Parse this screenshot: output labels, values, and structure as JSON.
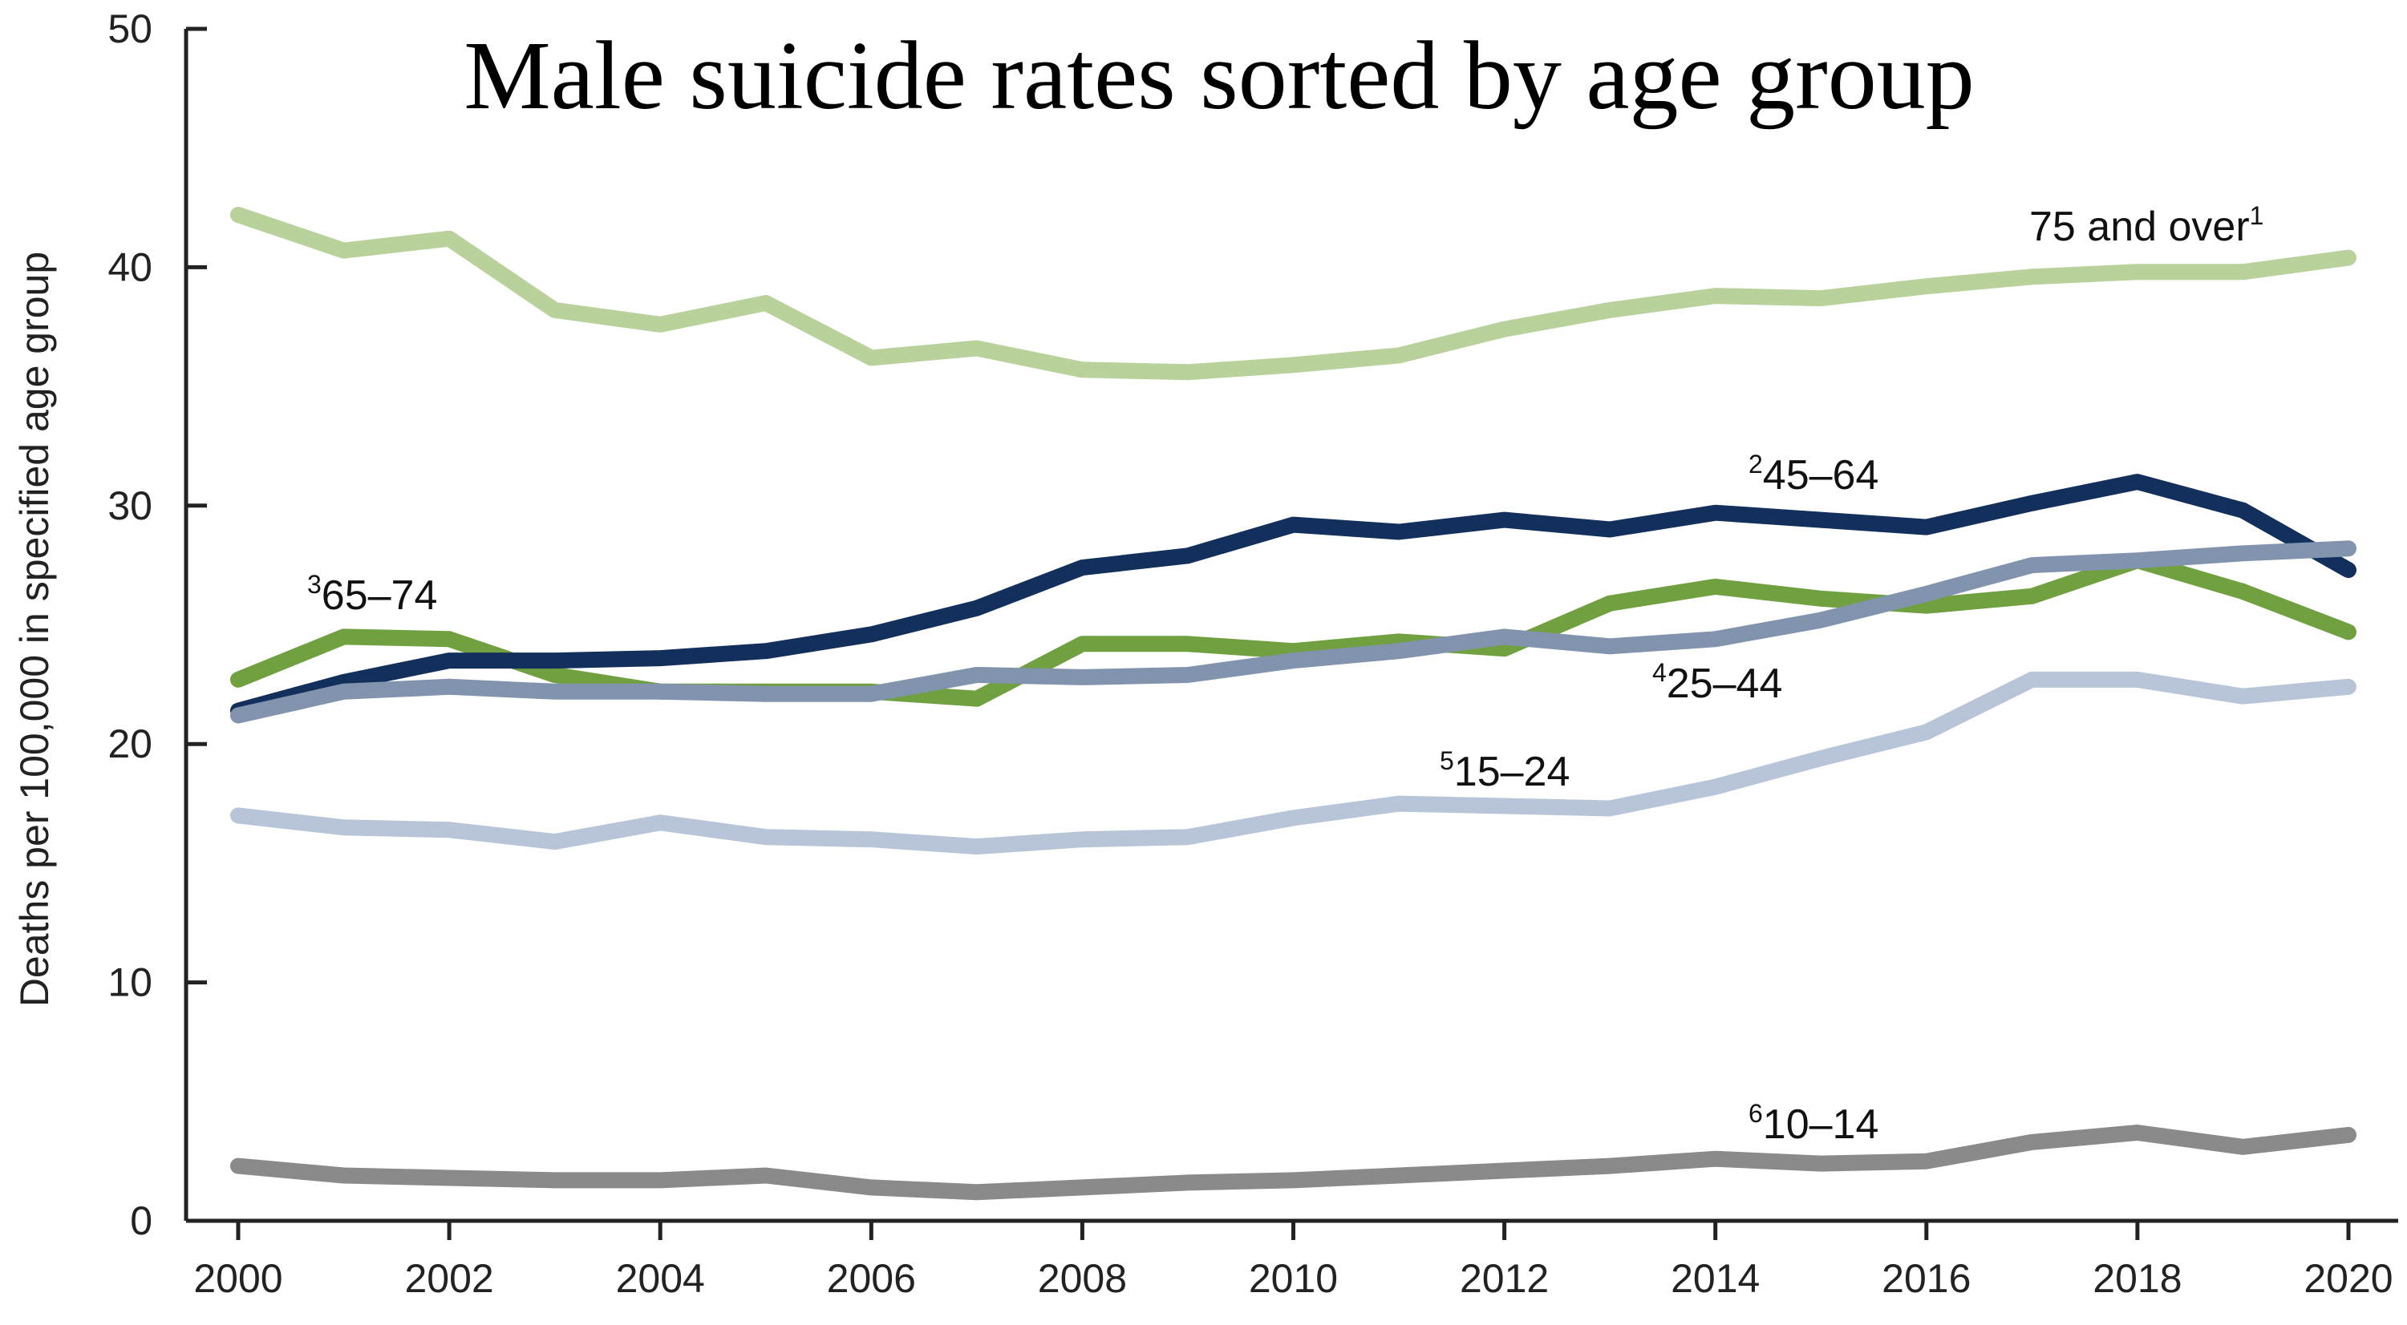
{
  "chart_data": {
    "type": "line",
    "title": "Male suicide rates sorted by age group",
    "ylabel": "Deaths per 100,000 in specified age group",
    "xlabel": "",
    "ylim": [
      0,
      50
    ],
    "y_ticks": [
      "0",
      "10",
      "20",
      "30",
      "40",
      "50"
    ],
    "x_tick_labels": [
      "2000",
      "2002",
      "2004",
      "2006",
      "2008",
      "2010",
      "2012",
      "2014",
      "2016",
      "2018",
      "2020"
    ],
    "x_ticks": [
      2000,
      2002,
      2004,
      2006,
      2008,
      2010,
      2012,
      2014,
      2016,
      2018,
      2020
    ],
    "grid": false,
    "legend": "inline labels",
    "x": [
      2000,
      2001,
      2002,
      2003,
      2004,
      2005,
      2006,
      2007,
      2008,
      2009,
      2010,
      2011,
      2012,
      2013,
      2014,
      2015,
      2016,
      2017,
      2018,
      2019,
      2020
    ],
    "series": [
      {
        "key": "s75",
        "name": "75 and over",
        "sup": "1",
        "sup_position": "after",
        "color": "#b9d19b",
        "values": [
          42.2,
          40.7,
          41.2,
          38.2,
          37.6,
          38.5,
          36.2,
          36.6,
          35.7,
          35.6,
          35.9,
          36.3,
          37.4,
          38.2,
          38.8,
          38.7,
          39.2,
          39.6,
          39.8,
          39.8,
          40.4
        ]
      },
      {
        "key": "s45",
        "name": "45–64",
        "sup": "2",
        "sup_position": "before",
        "color": "#13305c",
        "values": [
          21.4,
          22.6,
          23.5,
          23.5,
          23.6,
          23.9,
          24.6,
          25.7,
          27.4,
          27.9,
          29.2,
          28.9,
          29.4,
          29.0,
          29.7,
          29.4,
          29.1,
          30.1,
          31.0,
          29.8,
          27.3
        ]
      },
      {
        "key": "s65",
        "name": "65–74",
        "sup": "3",
        "sup_position": "before",
        "color": "#70a040",
        "values": [
          22.7,
          24.5,
          24.4,
          22.9,
          22.2,
          22.2,
          22.2,
          21.9,
          24.2,
          24.2,
          23.9,
          24.3,
          24.0,
          25.9,
          26.6,
          26.1,
          25.8,
          26.2,
          27.7,
          26.4,
          24.7
        ]
      },
      {
        "key": "s25",
        "name": "25–44",
        "sup": "4",
        "sup_position": "before",
        "color": "#8293ae",
        "values": [
          21.2,
          22.2,
          22.4,
          22.2,
          22.2,
          22.1,
          22.1,
          22.9,
          22.8,
          22.9,
          23.5,
          23.9,
          24.5,
          24.1,
          24.4,
          25.2,
          26.3,
          27.5,
          27.7,
          28.0,
          28.2
        ]
      },
      {
        "key": "s15",
        "name": "15–24",
        "sup": "5",
        "sup_position": "before",
        "color": "#b8c5d9",
        "values": [
          17.0,
          16.5,
          16.4,
          15.9,
          16.7,
          16.1,
          16.0,
          15.7,
          16.0,
          16.1,
          16.9,
          17.5,
          17.4,
          17.3,
          18.2,
          19.4,
          20.5,
          22.7,
          22.7,
          22.0,
          22.4
        ]
      },
      {
        "key": "s10",
        "name": "10–14",
        "sup": "6",
        "sup_position": "before",
        "color": "#8a8a8a",
        "values": [
          2.3,
          1.9,
          1.8,
          1.7,
          1.7,
          1.9,
          1.4,
          1.2,
          1.4,
          1.6,
          1.7,
          1.9,
          2.1,
          2.3,
          2.6,
          2.4,
          2.5,
          3.3,
          3.7,
          3.1,
          3.6
        ]
      }
    ]
  }
}
